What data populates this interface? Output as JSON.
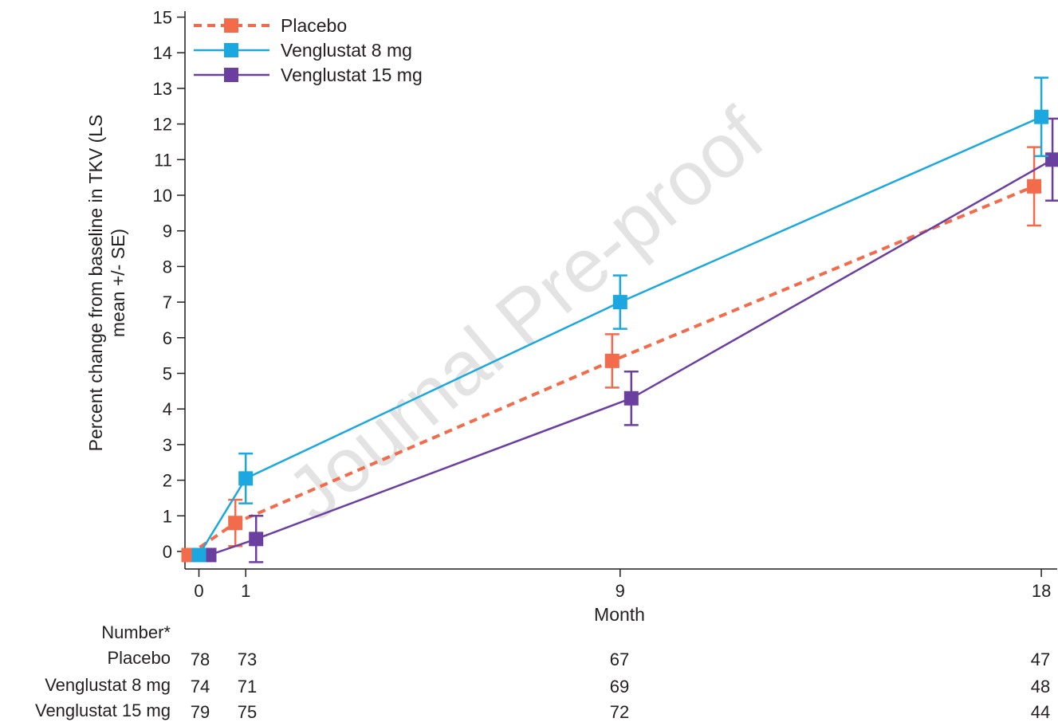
{
  "chart_data": {
    "type": "line",
    "xlabel": "Month",
    "ylabel_line1": "Percent change from baseline in TKV (LS",
    "ylabel_line2": "mean +/- SE)",
    "xlim": [
      0,
      18
    ],
    "ylim": [
      0,
      15
    ],
    "x_ticks": [
      0,
      1,
      9,
      18
    ],
    "y_ticks": [
      0,
      1,
      2,
      3,
      4,
      5,
      6,
      7,
      8,
      9,
      10,
      11,
      12,
      13,
      14,
      15
    ],
    "grid": false,
    "legend_position": "top-left",
    "series": [
      {
        "name": "Placebo",
        "color": "#f26b4a",
        "line_style": "dashed",
        "marker": "square",
        "x": [
          0,
          1,
          9,
          18
        ],
        "y": [
          -0.1,
          0.8,
          5.35,
          10.25
        ],
        "se": [
          0,
          0.65,
          0.75,
          1.1
        ]
      },
      {
        "name": "Venglustat 8 mg",
        "color": "#1ba8e0",
        "line_style": "solid",
        "marker": "square",
        "x": [
          0,
          1,
          9,
          18
        ],
        "y": [
          -0.1,
          2.05,
          7.0,
          12.2
        ],
        "se": [
          0,
          0.7,
          0.75,
          1.1
        ]
      },
      {
        "name": "Venglustat 15 mg",
        "color": "#6b3fa0",
        "line_style": "solid",
        "marker": "square",
        "x": [
          0,
          1,
          9,
          18
        ],
        "y": [
          -0.1,
          0.35,
          4.3,
          11.0
        ],
        "se": [
          0,
          0.65,
          0.75,
          1.15
        ]
      }
    ],
    "number_at_risk": {
      "heading": "Number*",
      "rows": [
        {
          "label": "Placebo",
          "values": [
            "78",
            "73",
            "67",
            "47"
          ]
        },
        {
          "label": "Venglustat 8 mg",
          "values": [
            "74",
            "71",
            "69",
            "48"
          ]
        },
        {
          "label": "Venglustat 15 mg",
          "values": [
            "79",
            "75",
            "72",
            "44"
          ]
        }
      ]
    },
    "watermark": "Journal Pre-proof"
  }
}
